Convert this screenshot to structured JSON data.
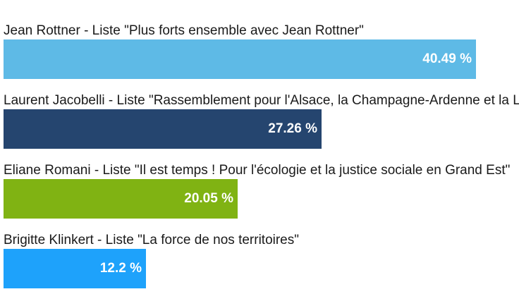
{
  "chart_data": {
    "type": "bar",
    "orientation": "horizontal",
    "categories": [
      "Jean Rottner - Liste \"Plus forts ensemble avec Jean Rottner\"",
      "Laurent Jacobelli - Liste \"Rassemblement pour l'Alsace, la Champagne-Ardenne et la Lorraine\"",
      "Eliane Romani - Liste \"Il est temps ! Pour l'écologie et la justice sociale en Grand Est\"",
      "Brigitte Klinkert - Liste \"La force de nos territoires\""
    ],
    "values": [
      40.49,
      27.26,
      20.05,
      12.2
    ],
    "value_labels": [
      "40.49 %",
      "27.26 %",
      "20.05 %",
      "12.2 %"
    ],
    "colors": [
      "#5ebae6",
      "#25456f",
      "#80b313",
      "#1ea2fb"
    ],
    "xlim": [
      0,
      44.2
    ],
    "grid": false,
    "title": "",
    "xlabel": "",
    "ylabel": ""
  }
}
